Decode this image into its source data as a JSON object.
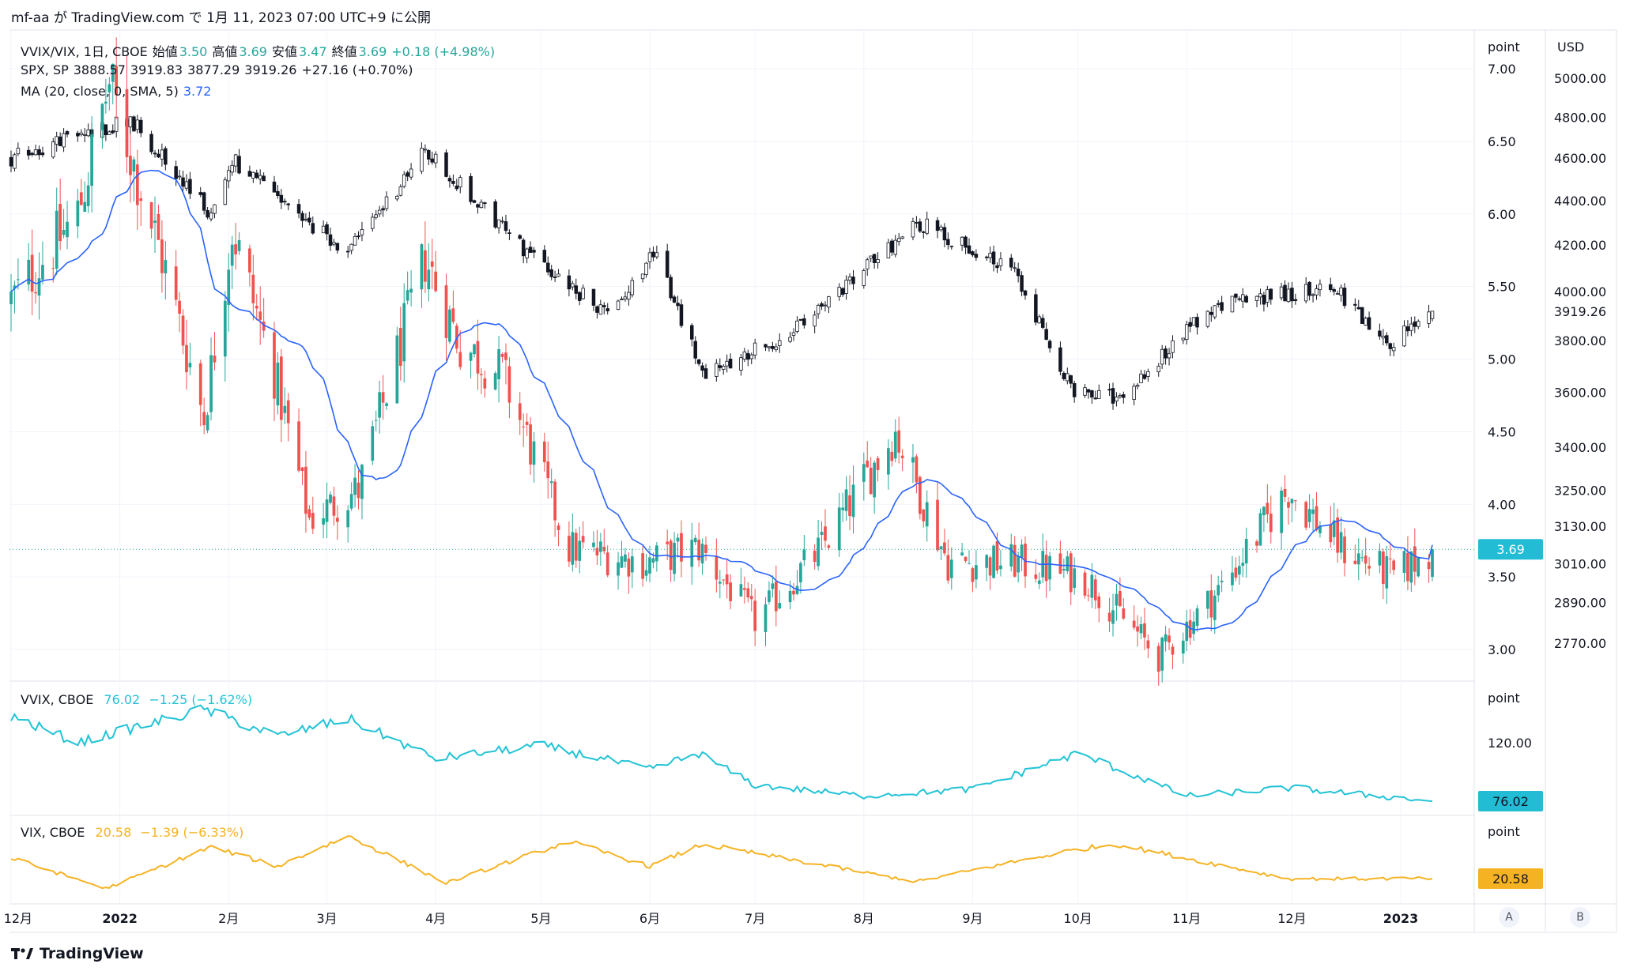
{
  "header": {
    "publisher": "mf-aa が TradingView.com で 1月 11, 2023 07:00 UTC+9 に公開"
  },
  "main_pane": {
    "legend_ratio": {
      "symbol": "VVIX/VIX, 1日, CBOE",
      "open_label": "始値",
      "open": "3.50",
      "high_label": "高値",
      "high": "3.69",
      "low_label": "安値",
      "low": "3.47",
      "close_label": "終値",
      "close": "3.69",
      "change": "+0.18 (+4.98%)"
    },
    "legend_spx": {
      "symbol": "SPX, SP",
      "open": "3888.57",
      "high": "3919.83",
      "low": "3877.29",
      "close": "3919.26",
      "change": "+27.16 (+0.70%)"
    },
    "legend_ma": {
      "label": "MA (20, close, 0, SMA, 5)",
      "value": "3.72"
    },
    "left_axis_unit": "point",
    "left_axis_ticks": [
      "7.00",
      "6.50",
      "6.00",
      "5.50",
      "5.00",
      "4.50",
      "4.00",
      "3.50",
      "3.00"
    ],
    "right_axis_unit": "USD",
    "right_axis_ticks": [
      "5000.00",
      "4800.00",
      "4600.00",
      "4400.00",
      "4200.00",
      "4000.00",
      "3800.00",
      "3600.00",
      "3400.00",
      "3250.00",
      "3130.00",
      "3010.00",
      "2890.00",
      "2770.00"
    ],
    "last_ratio_label": "3.69",
    "last_spx_label": "3919.26"
  },
  "vvix_pane": {
    "legend": {
      "symbol": "VVIX, CBOE",
      "value": "76.02",
      "change": "−1.25 (−1.62%)"
    },
    "axis_unit": "point",
    "axis_tick": "120.00",
    "last_label": "76.02"
  },
  "vix_pane": {
    "legend": {
      "symbol": "VIX, CBOE",
      "value": "20.58",
      "change": "−1.39 (−6.33%)"
    },
    "axis_unit": "point",
    "last_label": "20.58"
  },
  "time_axis": [
    "12月",
    "2022",
    "2月",
    "3月",
    "4月",
    "5月",
    "6月",
    "7月",
    "8月",
    "9月",
    "10月",
    "11月",
    "12月",
    "2023"
  ],
  "scale_buttons": {
    "a": "A",
    "b": "B"
  },
  "footer": {
    "brand": "TradingView"
  },
  "colors": {
    "up": "#26a69a",
    "down": "#ef5350",
    "spx": "#131722",
    "ma": "#2962ff",
    "vvix": "#22c3d6",
    "vix": "#f5b324",
    "ratio_badge": "#22bcd4",
    "vix_badge": "#f5b324"
  },
  "chart_data": [
    {
      "type": "candlestick",
      "title": "VVIX/VIX, 1日, CBOE",
      "ylabel": "point",
      "ylim": [
        2.8,
        7.05
      ],
      "x_range": [
        "2021-12-01",
        "2023-01-10"
      ],
      "anchors": [
        {
          "date": "2021-12-01",
          "close": 5.4
        },
        {
          "date": "2021-12-20",
          "close": 6.0
        },
        {
          "date": "2021-12-29",
          "close": 6.9
        },
        {
          "date": "2022-01-13",
          "close": 5.7
        },
        {
          "date": "2022-01-25",
          "close": 4.6
        },
        {
          "date": "2022-02-02",
          "close": 5.9
        },
        {
          "date": "2022-02-14",
          "close": 4.9
        },
        {
          "date": "2022-02-24",
          "close": 3.9
        },
        {
          "date": "2022-03-10",
          "close": 4.1
        },
        {
          "date": "2022-03-29",
          "close": 5.7
        },
        {
          "date": "2022-04-08",
          "close": 5.1
        },
        {
          "date": "2022-04-20",
          "close": 4.9
        },
        {
          "date": "2022-05-09",
          "close": 3.7
        },
        {
          "date": "2022-05-31",
          "close": 3.6
        },
        {
          "date": "2022-06-15",
          "close": 3.7
        },
        {
          "date": "2022-07-01",
          "close": 3.2
        },
        {
          "date": "2022-07-20",
          "close": 3.7
        },
        {
          "date": "2022-08-10",
          "close": 4.5
        },
        {
          "date": "2022-08-25",
          "close": 3.6
        },
        {
          "date": "2022-09-13",
          "close": 3.6
        },
        {
          "date": "2022-10-03",
          "close": 3.5
        },
        {
          "date": "2022-10-24",
          "close": 2.95
        },
        {
          "date": "2022-11-10",
          "close": 3.4
        },
        {
          "date": "2022-11-30",
          "close": 4.1
        },
        {
          "date": "2022-12-15",
          "close": 3.7
        },
        {
          "date": "2022-12-30",
          "close": 3.5
        },
        {
          "date": "2023-01-10",
          "close": 3.69
        }
      ],
      "last": {
        "open": 3.5,
        "high": 3.69,
        "low": 3.47,
        "close": 3.69
      }
    },
    {
      "type": "candlestick",
      "title": "SPX, SP",
      "ylabel": "USD",
      "scale": "log",
      "anchors": [
        {
          "date": "2021-12-01",
          "close": 4600
        },
        {
          "date": "2022-01-04",
          "close": 4790
        },
        {
          "date": "2022-01-27",
          "close": 4330
        },
        {
          "date": "2022-02-02",
          "close": 4590
        },
        {
          "date": "2022-02-24",
          "close": 4280
        },
        {
          "date": "2022-03-08",
          "close": 4180
        },
        {
          "date": "2022-03-29",
          "close": 4630
        },
        {
          "date": "2022-04-26",
          "close": 4180
        },
        {
          "date": "2022-05-20",
          "close": 3900
        },
        {
          "date": "2022-06-02",
          "close": 4170
        },
        {
          "date": "2022-06-16",
          "close": 3670
        },
        {
          "date": "2022-07-15",
          "close": 3860
        },
        {
          "date": "2022-08-16",
          "close": 4300
        },
        {
          "date": "2022-09-12",
          "close": 4110
        },
        {
          "date": "2022-09-30",
          "close": 3590
        },
        {
          "date": "2022-10-12",
          "close": 3580
        },
        {
          "date": "2022-11-10",
          "close": 3950
        },
        {
          "date": "2022-12-13",
          "close": 4020
        },
        {
          "date": "2022-12-28",
          "close": 3780
        },
        {
          "date": "2023-01-10",
          "close": 3919.26
        }
      ],
      "last": {
        "open": 3888.57,
        "high": 3919.83,
        "low": 3877.29,
        "close": 3919.26
      }
    },
    {
      "type": "line",
      "title": "MA (20, close, 0, SMA, 5)",
      "series": [
        {
          "name": "MA (20, close, 0, SMA, 5)",
          "source": "VVIX/VIX close, 20-day SMA",
          "last": 3.72
        }
      ]
    },
    {
      "type": "line",
      "title": "VVIX, CBOE",
      "ylabel": "point",
      "ylim": [
        60,
        155
      ],
      "series": [
        {
          "name": "VVIX, CBOE",
          "anchors": [
            {
              "date": "2021-12-01",
              "value": 140
            },
            {
              "date": "2021-12-20",
              "value": 120
            },
            {
              "date": "2022-01-25",
              "value": 145
            },
            {
              "date": "2022-02-15",
              "value": 125
            },
            {
              "date": "2022-03-07",
              "value": 138
            },
            {
              "date": "2022-04-01",
              "value": 108
            },
            {
              "date": "2022-05-01",
              "value": 118
            },
            {
              "date": "2022-06-01",
              "value": 100
            },
            {
              "date": "2022-06-15",
              "value": 112
            },
            {
              "date": "2022-07-01",
              "value": 88
            },
            {
              "date": "2022-08-01",
              "value": 80
            },
            {
              "date": "2022-09-01",
              "value": 85
            },
            {
              "date": "2022-10-01",
              "value": 112
            },
            {
              "date": "2022-11-01",
              "value": 80
            },
            {
              "date": "2022-12-01",
              "value": 86
            },
            {
              "date": "2023-01-10",
              "value": 76.02
            }
          ],
          "last": 76.02,
          "change": -1.25
        }
      ]
    },
    {
      "type": "line",
      "title": "VIX, CBOE",
      "ylabel": "point",
      "ylim": [
        15,
        38
      ],
      "series": [
        {
          "name": "VIX, CBOE",
          "anchors": [
            {
              "date": "2021-12-01",
              "value": 28
            },
            {
              "date": "2021-12-28",
              "value": 17
            },
            {
              "date": "2022-01-27",
              "value": 32
            },
            {
              "date": "2022-02-15",
              "value": 25
            },
            {
              "date": "2022-03-07",
              "value": 36
            },
            {
              "date": "2022-04-04",
              "value": 19
            },
            {
              "date": "2022-05-09",
              "value": 34
            },
            {
              "date": "2022-06-01",
              "value": 25
            },
            {
              "date": "2022-06-16",
              "value": 33
            },
            {
              "date": "2022-08-16",
              "value": 19.5
            },
            {
              "date": "2022-09-30",
              "value": 31
            },
            {
              "date": "2022-10-12",
              "value": 33
            },
            {
              "date": "2022-11-30",
              "value": 20.5
            },
            {
              "date": "2023-01-10",
              "value": 20.58
            }
          ],
          "last": 20.58,
          "change": -1.39
        }
      ]
    }
  ]
}
